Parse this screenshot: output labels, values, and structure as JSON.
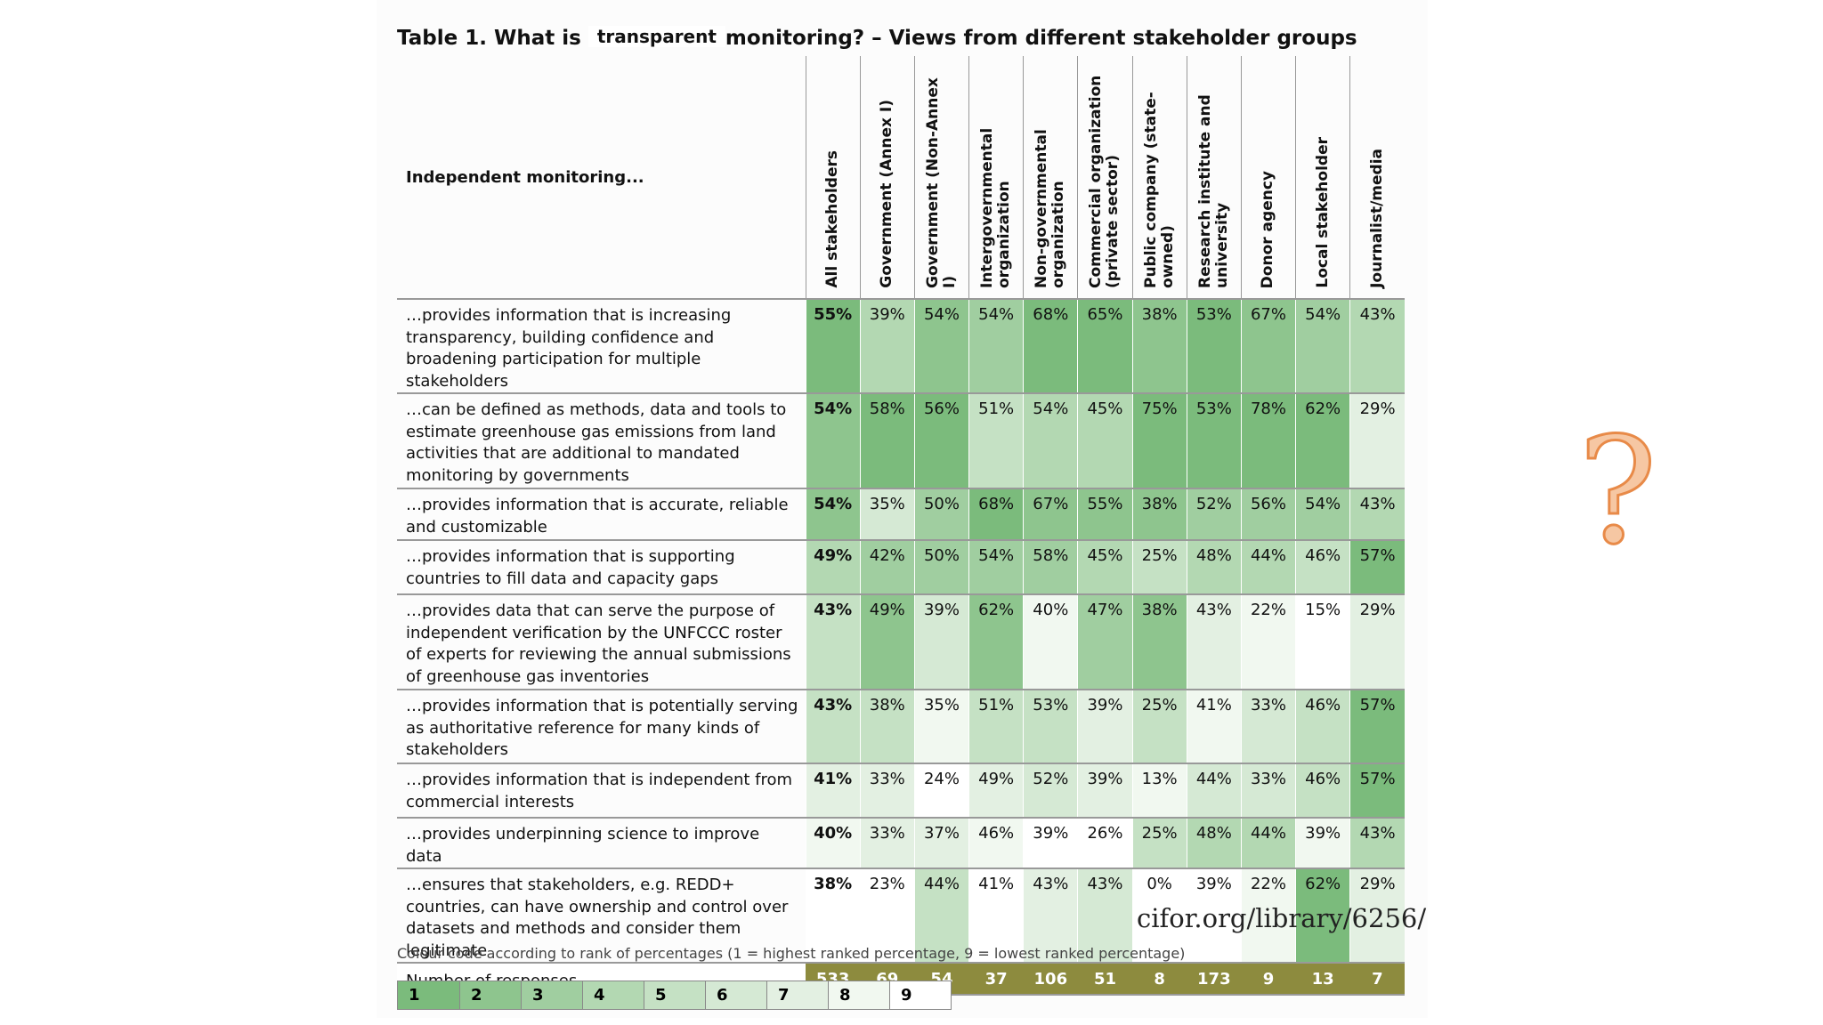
{
  "title": {
    "before": "Table 1. What is",
    "overlay": "transparent",
    "after": "monitoring? – Views from different stakeholder groups"
  },
  "table": {
    "corner": "Independent monitoring...",
    "columns": [
      "All stakeholders",
      "Government (Annex I)",
      "Government (Non-Annex I)",
      "Intergovernmental organization",
      "Non-governmental organization",
      "Commercial organization (private sector)",
      "Public company (state-owned)",
      "Research institute and university",
      "Donor agency",
      "Local stakeholder",
      "Journalist/media"
    ],
    "rows": [
      {
        "label": "…provides information that is increasing transparency, building confidence and broadening participation for multiple stakeholders",
        "cells": [
          "55%",
          "39%",
          "54%",
          "54%",
          "68%",
          "65%",
          "38%",
          "53%",
          "67%",
          "54%",
          "43%"
        ]
      },
      {
        "label": "…can be defined as methods, data and tools to estimate greenhouse gas emissions from land activities that are additional to mandated monitoring by governments",
        "cells": [
          "54%",
          "58%",
          "56%",
          "51%",
          "54%",
          "45%",
          "75%",
          "53%",
          "78%",
          "62%",
          "29%"
        ]
      },
      {
        "label": "…provides information that is accurate, reliable and customizable",
        "cells": [
          "54%",
          "35%",
          "50%",
          "68%",
          "67%",
          "55%",
          "38%",
          "52%",
          "56%",
          "54%",
          "43%"
        ]
      },
      {
        "label": "…provides information that is supporting countries to fill data and capacity gaps",
        "cells": [
          "49%",
          "42%",
          "50%",
          "54%",
          "58%",
          "45%",
          "25%",
          "48%",
          "44%",
          "46%",
          "57%"
        ]
      },
      {
        "label": "…provides data that can serve the purpose of independent verification by the UNFCCC roster of experts for reviewing the annual submissions of greenhouse gas inventories",
        "cells": [
          "43%",
          "49%",
          "39%",
          "62%",
          "40%",
          "47%",
          "38%",
          "43%",
          "22%",
          "15%",
          "29%"
        ]
      },
      {
        "label": "…provides information that is potentially serving as authoritative reference for many kinds of stakeholders",
        "cells": [
          "43%",
          "38%",
          "35%",
          "51%",
          "53%",
          "39%",
          "25%",
          "41%",
          "33%",
          "46%",
          "57%"
        ]
      },
      {
        "label": "…provides information that is independent from commercial interests",
        "cells": [
          "41%",
          "33%",
          "24%",
          "49%",
          "52%",
          "39%",
          "13%",
          "44%",
          "33%",
          "46%",
          "57%"
        ]
      },
      {
        "label": "…provides underpinning science to improve data",
        "cells": [
          "40%",
          "33%",
          "37%",
          "46%",
          "39%",
          "26%",
          "25%",
          "48%",
          "44%",
          "39%",
          "43%"
        ]
      },
      {
        "label": "…ensures that stakeholders, e.g. REDD+ countries, can have ownership and control over datasets and methods and consider them legitimate",
        "cells": [
          "38%",
          "23%",
          "44%",
          "41%",
          "43%",
          "43%",
          "0%",
          "39%",
          "22%",
          "62%",
          "29%"
        ]
      }
    ],
    "responses": {
      "label": "Number of responses",
      "cells": [
        "533",
        "69",
        "54",
        "37",
        "106",
        "51",
        "8",
        "173",
        "9",
        "13",
        "7"
      ]
    }
  },
  "watermark": "cifor.org/library/6256/",
  "note": "Colour code according to rank of percentages (1 = highest ranked percentage, 9 = lowest ranked percentage)",
  "legend": {
    "items": [
      "1",
      "2",
      "3",
      "4",
      "5",
      "6",
      "7",
      "8",
      "9"
    ],
    "colors": [
      "#7bbb7c",
      "#8ec58e",
      "#a0cea0",
      "#b3d8b2",
      "#c5e1c4",
      "#d5e9d4",
      "#e3f0e2",
      "#f1f8f0",
      "#ffffff"
    ]
  },
  "mark": "?"
}
